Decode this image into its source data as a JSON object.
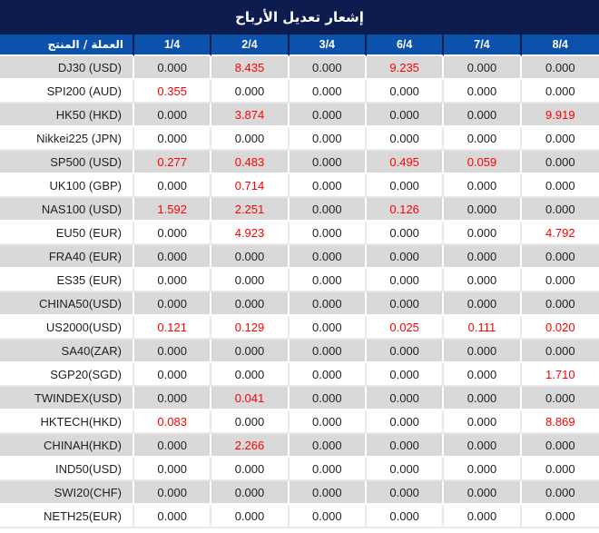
{
  "title": "إشعار تعديل الأرباح",
  "colors": {
    "title_bg": "#0D1C4E",
    "header_bg": "#0C52AB",
    "header_divider": "#0D1C4E",
    "row_alt_bg": "#D9D9D9",
    "row_plain_bg": "#FFFFFF",
    "text_dark": "#1F1F1F",
    "value_red": "#FE0000"
  },
  "table": {
    "product_header": "العملة / المنتج",
    "date_columns": [
      "1/4",
      "2/4",
      "3/4",
      "6/4",
      "7/4",
      "8/4"
    ],
    "rows": [
      {
        "product": "DJ30 (USD)",
        "values": [
          "0.000",
          "8.435",
          "0.000",
          "9.235",
          "0.000",
          "0.000"
        ]
      },
      {
        "product": "SPI200 (AUD)",
        "values": [
          "0.355",
          "0.000",
          "0.000",
          "0.000",
          "0.000",
          "0.000"
        ]
      },
      {
        "product": "HK50 (HKD)",
        "values": [
          "0.000",
          "3.874",
          "0.000",
          "0.000",
          "0.000",
          "9.919"
        ]
      },
      {
        "product": "Nikkei225 (JPN)",
        "values": [
          "0.000",
          "0.000",
          "0.000",
          "0.000",
          "0.000",
          "0.000"
        ]
      },
      {
        "product": "SP500 (USD)",
        "values": [
          "0.277",
          "0.483",
          "0.000",
          "0.495",
          "0.059",
          "0.000"
        ]
      },
      {
        "product": "UK100 (GBP)",
        "values": [
          "0.000",
          "0.714",
          "0.000",
          "0.000",
          "0.000",
          "0.000"
        ]
      },
      {
        "product": "NAS100 (USD)",
        "values": [
          "1.592",
          "2.251",
          "0.000",
          "0.126",
          "0.000",
          "0.000"
        ]
      },
      {
        "product": "EU50 (EUR)",
        "values": [
          "0.000",
          "4.923",
          "0.000",
          "0.000",
          "0.000",
          "4.792"
        ]
      },
      {
        "product": "FRA40 (EUR)",
        "values": [
          "0.000",
          "0.000",
          "0.000",
          "0.000",
          "0.000",
          "0.000"
        ]
      },
      {
        "product": "ES35 (EUR)",
        "values": [
          "0.000",
          "0.000",
          "0.000",
          "0.000",
          "0.000",
          "0.000"
        ]
      },
      {
        "product": "CHINA50(USD)",
        "values": [
          "0.000",
          "0.000",
          "0.000",
          "0.000",
          "0.000",
          "0.000"
        ]
      },
      {
        "product": "US2000(USD)",
        "values": [
          "0.121",
          "0.129",
          "0.000",
          "0.025",
          "0.111",
          "0.020"
        ]
      },
      {
        "product": "SA40(ZAR)",
        "values": [
          "0.000",
          "0.000",
          "0.000",
          "0.000",
          "0.000",
          "0.000"
        ]
      },
      {
        "product": "SGP20(SGD)",
        "values": [
          "0.000",
          "0.000",
          "0.000",
          "0.000",
          "0.000",
          "1.710"
        ]
      },
      {
        "product": "TWINDEX(USD)",
        "values": [
          "0.000",
          "0.041",
          "0.000",
          "0.000",
          "0.000",
          "0.000"
        ]
      },
      {
        "product": "HKTECH(HKD)",
        "values": [
          "0.083",
          "0.000",
          "0.000",
          "0.000",
          "0.000",
          "8.869"
        ]
      },
      {
        "product": "CHINAH(HKD)",
        "values": [
          "0.000",
          "2.266",
          "0.000",
          "0.000",
          "0.000",
          "0.000"
        ]
      },
      {
        "product": "IND50(USD)",
        "values": [
          "0.000",
          "0.000",
          "0.000",
          "0.000",
          "0.000",
          "0.000"
        ]
      },
      {
        "product": "SWI20(CHF)",
        "values": [
          "0.000",
          "0.000",
          "0.000",
          "0.000",
          "0.000",
          "0.000"
        ]
      },
      {
        "product": "NETH25(EUR)",
        "values": [
          "0.000",
          "0.000",
          "0.000",
          "0.000",
          "0.000",
          "0.000"
        ]
      }
    ]
  }
}
